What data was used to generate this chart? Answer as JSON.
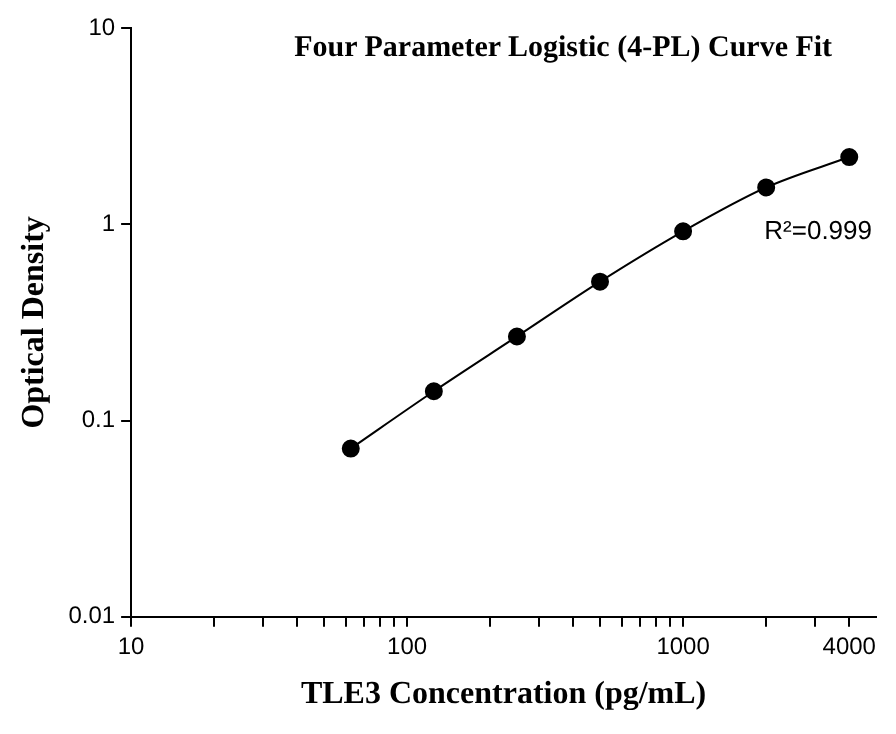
{
  "chart_data": {
    "type": "line",
    "title": "Four Parameter Logistic (4-PL) Curve Fit",
    "xlabel": "TLE3 Concentration (pg/mL)",
    "ylabel": "Optical Density",
    "log": "xy",
    "grid": false,
    "legend": false,
    "marker": "circle",
    "line_style": "solid",
    "xlim": [
      10,
      5000
    ],
    "ylim": [
      0.01,
      10
    ],
    "xticks": [
      10,
      {
        "value": 20,
        "label": null
      },
      {
        "value": 30,
        "label": null
      },
      {
        "value": 40,
        "label": null
      },
      {
        "value": 50,
        "label": null
      },
      {
        "value": 60,
        "label": null
      },
      {
        "value": 70,
        "label": null
      },
      {
        "value": 80,
        "label": null
      },
      {
        "value": 90,
        "label": null
      },
      100,
      {
        "value": 200,
        "label": null
      },
      {
        "value": 300,
        "label": null
      },
      {
        "value": 400,
        "label": null
      },
      {
        "value": 500,
        "label": null
      },
      {
        "value": 600,
        "label": null
      },
      {
        "value": 700,
        "label": null
      },
      {
        "value": 800,
        "label": null
      },
      {
        "value": 900,
        "label": null
      },
      1000,
      {
        "value": 2000,
        "label": null
      },
      {
        "value": 3000,
        "label": null
      },
      4000
    ],
    "yticks": [
      0.01,
      0.1,
      1,
      10
    ],
    "annotations": [
      "R²=0.999"
    ],
    "series": [
      {
        "type": "line",
        "color": "#000000",
        "x": [
          62.5,
          125,
          250,
          500,
          1000,
          2000,
          4000
        ],
        "values": [
          0.072,
          0.141,
          0.268,
          0.51,
          0.92,
          1.54,
          2.2
        ]
      }
    ]
  }
}
